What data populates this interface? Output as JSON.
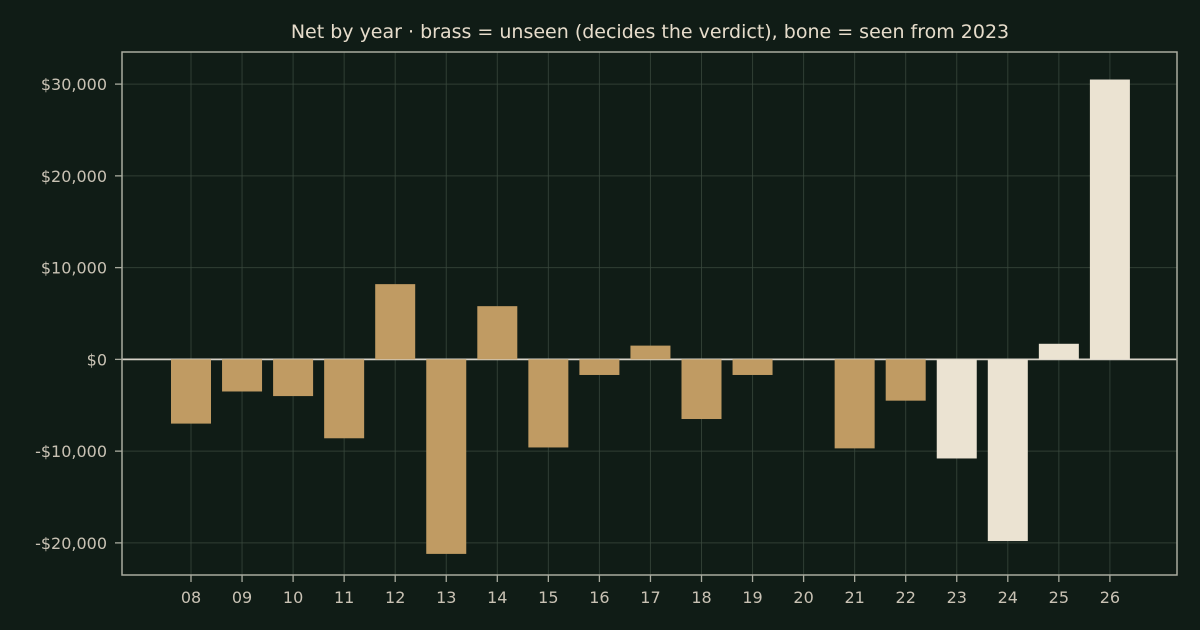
{
  "colors": {
    "background": "#101c16",
    "unseen_bar": "#c09b63",
    "seen_bar": "#ebe3d2",
    "text": "#e6dccb",
    "tick_text": "#c9c2b4",
    "grid": "#3b4a3f",
    "axis": "#a9ab9f",
    "zero_line": "#d7d2c8"
  },
  "chart_data": {
    "type": "bar",
    "title": "Net by year  ·  brass = unseen (decides the verdict), bone = seen from 2023",
    "xlabel": "",
    "ylabel": "",
    "categories": [
      "08",
      "09",
      "10",
      "11",
      "12",
      "13",
      "14",
      "15",
      "16",
      "17",
      "18",
      "19",
      "20",
      "21",
      "22",
      "23",
      "24",
      "25",
      "26"
    ],
    "values": [
      -7000,
      -3500,
      -4000,
      -8600,
      8200,
      -21200,
      5800,
      -9600,
      -1700,
      1500,
      -6500,
      -1700,
      0,
      -9700,
      -4500,
      -10800,
      -19800,
      1700,
      30500
    ],
    "groups": [
      "unseen",
      "unseen",
      "unseen",
      "unseen",
      "unseen",
      "unseen",
      "unseen",
      "unseen",
      "unseen",
      "unseen",
      "unseen",
      "unseen",
      "unseen",
      "unseen",
      "unseen",
      "seen",
      "seen",
      "seen",
      "seen"
    ],
    "ylim": [
      -23500,
      33500
    ],
    "yticks": [
      -20000,
      -10000,
      0,
      10000,
      20000,
      30000
    ],
    "ytick_labels": [
      "-$20,000",
      "-$10,000",
      "$0",
      "$10,000",
      "$20,000",
      "$30,000"
    ],
    "grid": true
  }
}
